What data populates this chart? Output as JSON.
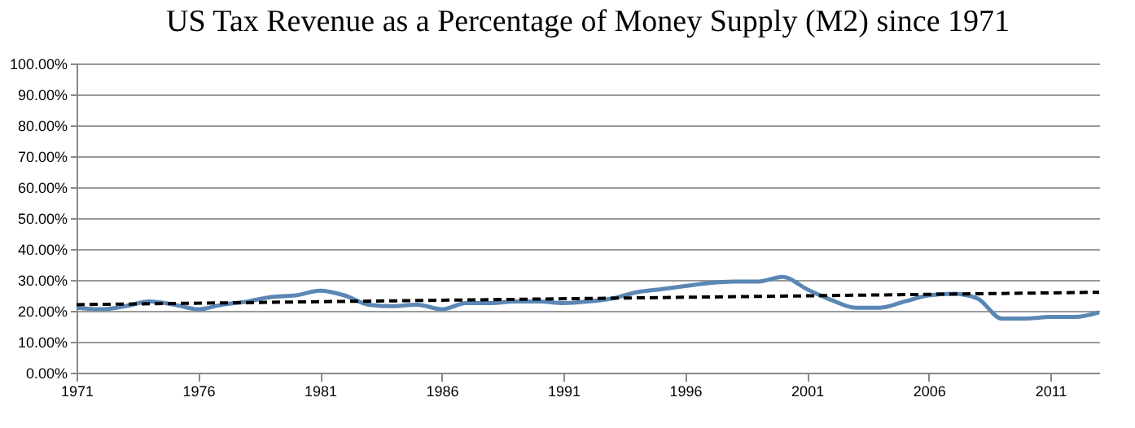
{
  "chart_data": {
    "type": "line",
    "title": "US Tax Revenue as a Percentage of Money Supply (M2) since 1971",
    "x": [
      1971,
      1972,
      1973,
      1974,
      1975,
      1976,
      1977,
      1978,
      1979,
      1980,
      1981,
      1982,
      1983,
      1984,
      1985,
      1986,
      1987,
      1988,
      1989,
      1990,
      1991,
      1992,
      1993,
      1994,
      1995,
      1996,
      1997,
      1998,
      1999,
      2000,
      2001,
      2002,
      2003,
      2004,
      2005,
      2006,
      2007,
      2008,
      2009,
      2010,
      2011,
      2012,
      2013
    ],
    "series": [
      {
        "color": "#5b87b5",
        "values": [
          21,
          20.5,
          21.5,
          23,
          22,
          20.5,
          22,
          23,
          24.5,
          25,
          26.5,
          25,
          22,
          21.5,
          22,
          20.5,
          22.5,
          22.5,
          23,
          23,
          22.5,
          23,
          24,
          26,
          27,
          28,
          29,
          29.5,
          29.5,
          31,
          27,
          23.5,
          21,
          21,
          23,
          25,
          25.5,
          24,
          17.5,
          17.5,
          18,
          18,
          19.5
        ]
      },
      {
        "type": "line",
        "color": "#000000",
        "line_style": "dashed",
        "x": [
          1971,
          2013
        ],
        "values": [
          22,
          26
        ]
      }
    ],
    "xlim": [
      1971,
      2013
    ],
    "xticks": [
      1971,
      1976,
      1981,
      1986,
      1991,
      1996,
      2001,
      2006,
      2011
    ],
    "ylim": [
      0,
      100
    ],
    "yticks": [
      {
        "value": 0,
        "label": "0.00%"
      },
      {
        "value": 10,
        "label": "10.00%"
      },
      {
        "value": 20,
        "label": "20.00%"
      },
      {
        "value": 30,
        "label": "30.00%"
      },
      {
        "value": 40,
        "label": "40.00%"
      },
      {
        "value": 50,
        "label": "50.00%"
      },
      {
        "value": 60,
        "label": "60.00%"
      },
      {
        "value": 70,
        "label": "70.00%"
      },
      {
        "value": 80,
        "label": "80.00%"
      },
      {
        "value": 90,
        "label": "90.00%"
      },
      {
        "value": 100,
        "label": "100.00%"
      }
    ],
    "grid": "y",
    "marker": "none"
  }
}
